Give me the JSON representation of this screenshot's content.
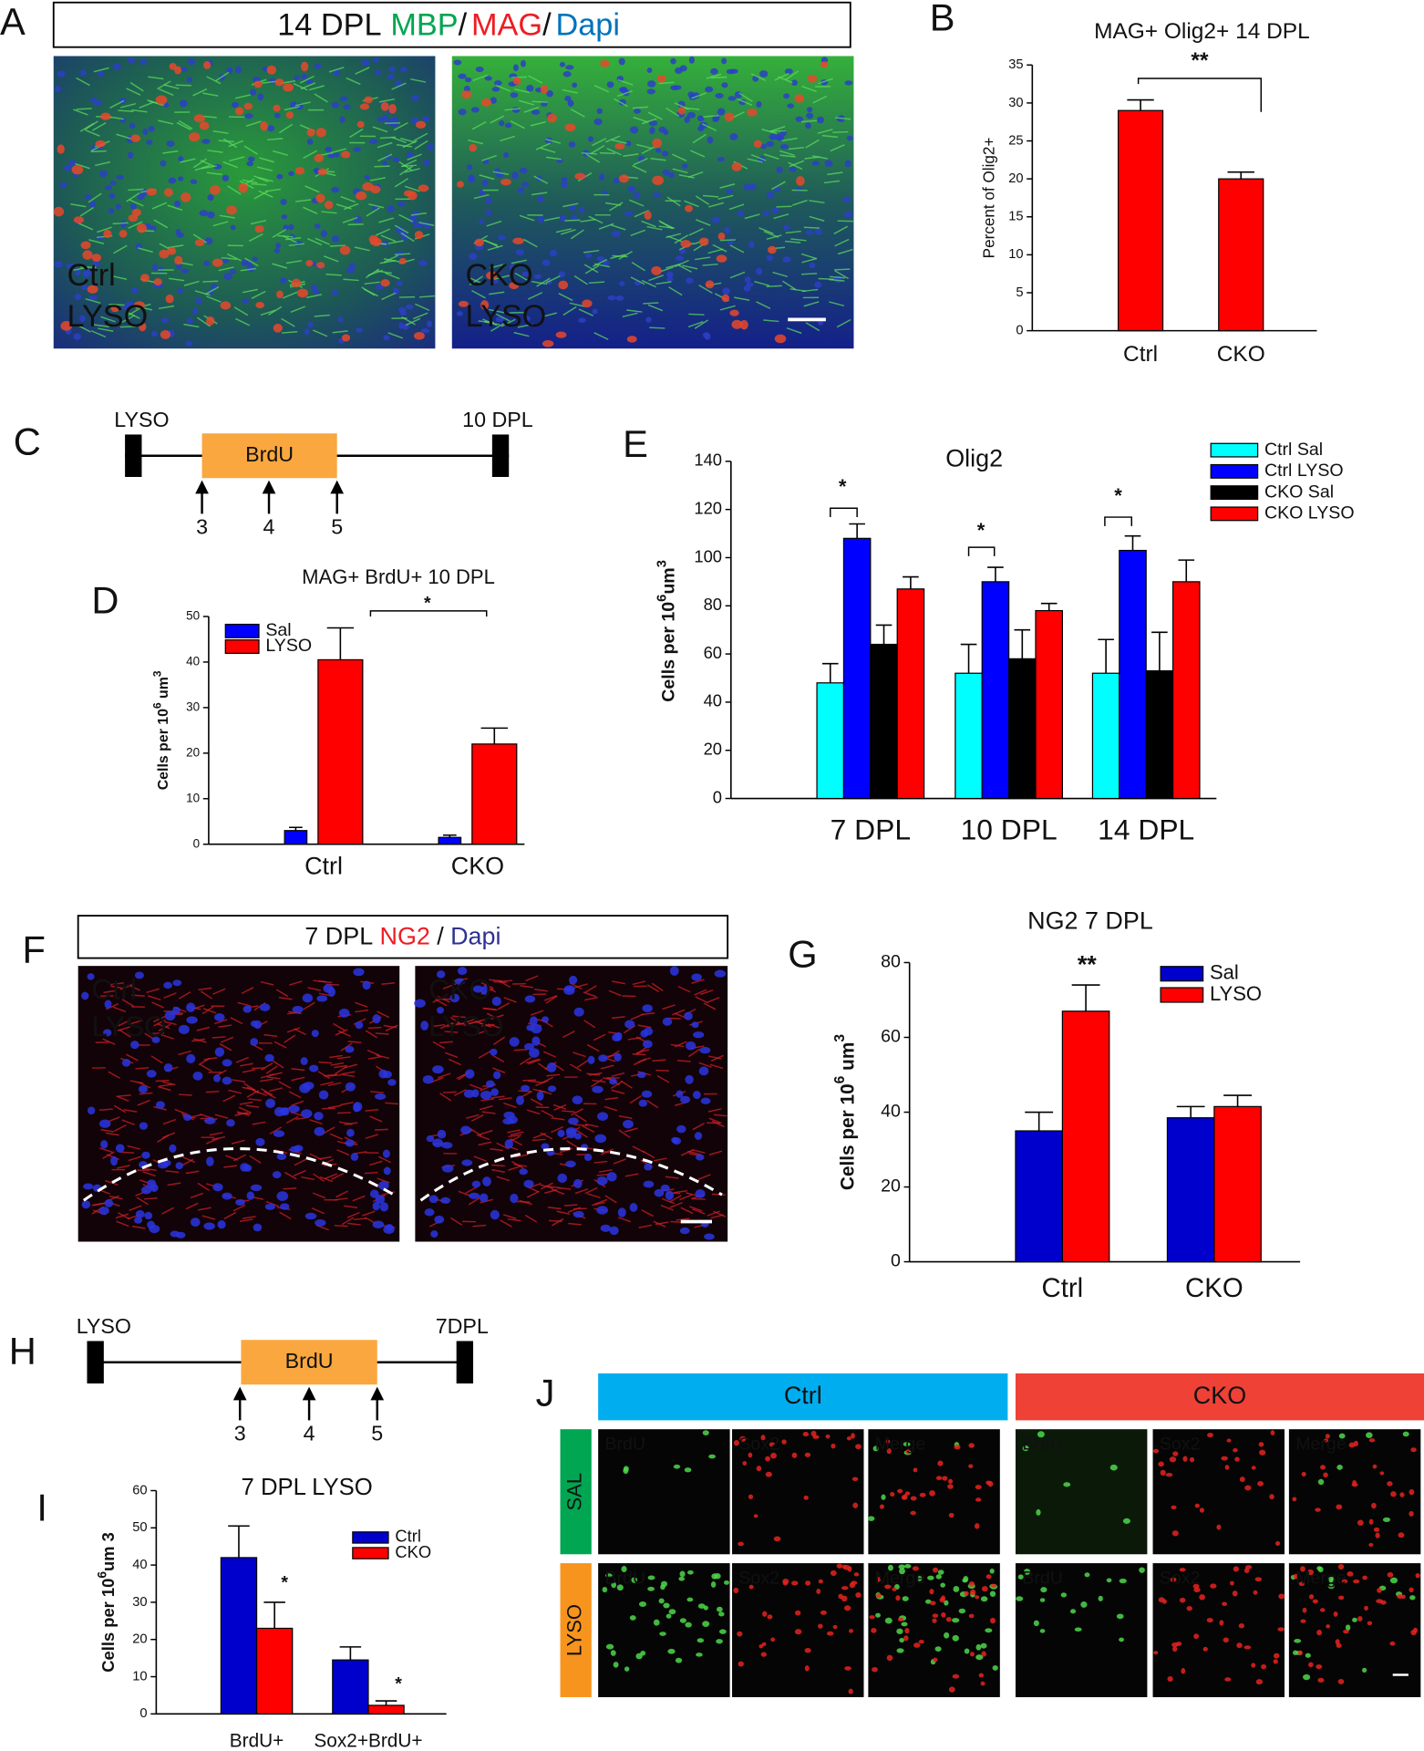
{
  "panel_labels": [
    "A",
    "B",
    "C",
    "D",
    "E",
    "F",
    "G",
    "H",
    "I",
    "J"
  ],
  "panel_a": {
    "header": [
      "14 DPL",
      "MBP",
      "/",
      "MAG",
      "/",
      "Dapi"
    ],
    "images": [
      [
        "Ctrl",
        "LYSO"
      ],
      [
        "CKO",
        "LYSO"
      ]
    ]
  },
  "panel_c": {
    "start": "LYSO",
    "end": "10 DPL",
    "block": "BrdU",
    "days": [
      3,
      4,
      5
    ]
  },
  "panel_f": {
    "header": [
      "7 DPL",
      "NG2",
      "/",
      "Dapi"
    ],
    "images": [
      [
        "Ctrl",
        "LYSO"
      ],
      [
        "CKO",
        "LYSO"
      ]
    ]
  },
  "panel_h": {
    "start": "LYSO",
    "end": "7DPL",
    "block": "BrdU",
    "days": [
      3,
      4,
      5
    ]
  },
  "panel_j": {
    "groups": [
      "Ctrl",
      "CKO"
    ],
    "rows": [
      "SAL",
      "LYSO"
    ],
    "channels": [
      "BrdU",
      "Sox2",
      "Merge"
    ]
  },
  "chart_data": [
    {
      "type": "bar",
      "title": "MAG+ Olig2+  14 DPL",
      "ylabel": "Percent of Olig2+",
      "categories": [
        "Ctrl",
        "CKO"
      ],
      "values": [
        29,
        20
      ],
      "errors": [
        1.4,
        0.9
      ],
      "color": "#ff0000",
      "ylim": [
        0,
        35
      ],
      "yticks": [
        0,
        5,
        10,
        15,
        20,
        25,
        30,
        35
      ],
      "annotations": [
        "**"
      ]
    },
    {
      "type": "bar",
      "title": "MAG+ BrdU+ 10 DPL",
      "ylabel": [
        "Cells per 10",
        "6",
        " um",
        "3"
      ],
      "categories": [
        "Ctrl",
        "CKO"
      ],
      "series": [
        {
          "name": "Sal",
          "color": "#0000ff",
          "values": [
            3,
            1.5
          ],
          "errors": [
            0.7,
            0.5
          ]
        },
        {
          "name": "LYSO",
          "color": "#ff0000",
          "values": [
            40.5,
            22
          ],
          "errors": [
            7,
            3.5
          ]
        }
      ],
      "ylim": [
        0,
        50
      ],
      "yticks": [
        0,
        10,
        20,
        30,
        40,
        50
      ],
      "annotations": [
        "*"
      ]
    },
    {
      "type": "bar",
      "title": "Olig2",
      "ylabel": [
        "Cells per 10",
        "6",
        "um",
        "3"
      ],
      "categories": [
        "7 DPL",
        "10 DPL",
        "14 DPL"
      ],
      "series": [
        {
          "name": "Ctrl Sal",
          "color": "#00ffff",
          "values": [
            48,
            52,
            52
          ],
          "errors": [
            8,
            12,
            14
          ]
        },
        {
          "name": "Ctrl LYSO",
          "color": "#0000ff",
          "values": [
            108,
            90,
            103
          ],
          "errors": [
            6,
            6,
            6
          ]
        },
        {
          "name": "CKO Sal",
          "color": "#000000",
          "values": [
            64,
            58,
            53
          ],
          "errors": [
            8,
            12,
            16
          ]
        },
        {
          "name": "CKO LYSO",
          "color": "#ff0000",
          "values": [
            87,
            78,
            90
          ],
          "errors": [
            5,
            3,
            9
          ]
        }
      ],
      "ylim": [
        0,
        140
      ],
      "yticks": [
        0,
        20,
        40,
        60,
        80,
        100,
        120,
        140
      ],
      "annotations": [
        "*",
        "*",
        "*"
      ]
    },
    {
      "type": "bar",
      "title": "NG2   7 DPL",
      "ylabel": [
        "Cells per 10",
        "6",
        " um",
        "3"
      ],
      "categories": [
        "Ctrl",
        "CKO"
      ],
      "series": [
        {
          "name": "Sal",
          "color": "#0000cc",
          "values": [
            35,
            38.5
          ],
          "errors": [
            5,
            3
          ]
        },
        {
          "name": "LYSO",
          "color": "#ff0000",
          "values": [
            67,
            41.5
          ],
          "errors": [
            7,
            3
          ]
        }
      ],
      "ylim": [
        0,
        80
      ],
      "yticks": [
        0,
        20,
        40,
        60,
        80
      ],
      "annotations": [
        "**"
      ]
    },
    {
      "type": "bar",
      "title": "7 DPL LYSO",
      "ylabel": [
        "Cells per 10",
        "6",
        "um 3"
      ],
      "categories": [
        "BrdU+",
        "Sox2+BrdU+"
      ],
      "series": [
        {
          "name": "Ctrl",
          "color": "#0000cc",
          "values": [
            42,
            14.5
          ],
          "errors": [
            8.5,
            3.5
          ]
        },
        {
          "name": "CKO",
          "color": "#ff0000",
          "values": [
            23,
            2.3
          ],
          "errors": [
            7,
            1.2
          ]
        }
      ],
      "ylim": [
        0,
        60
      ],
      "yticks": [
        0,
        10,
        20,
        30,
        40,
        50,
        60
      ],
      "annotations": [
        "*",
        "*"
      ]
    }
  ]
}
